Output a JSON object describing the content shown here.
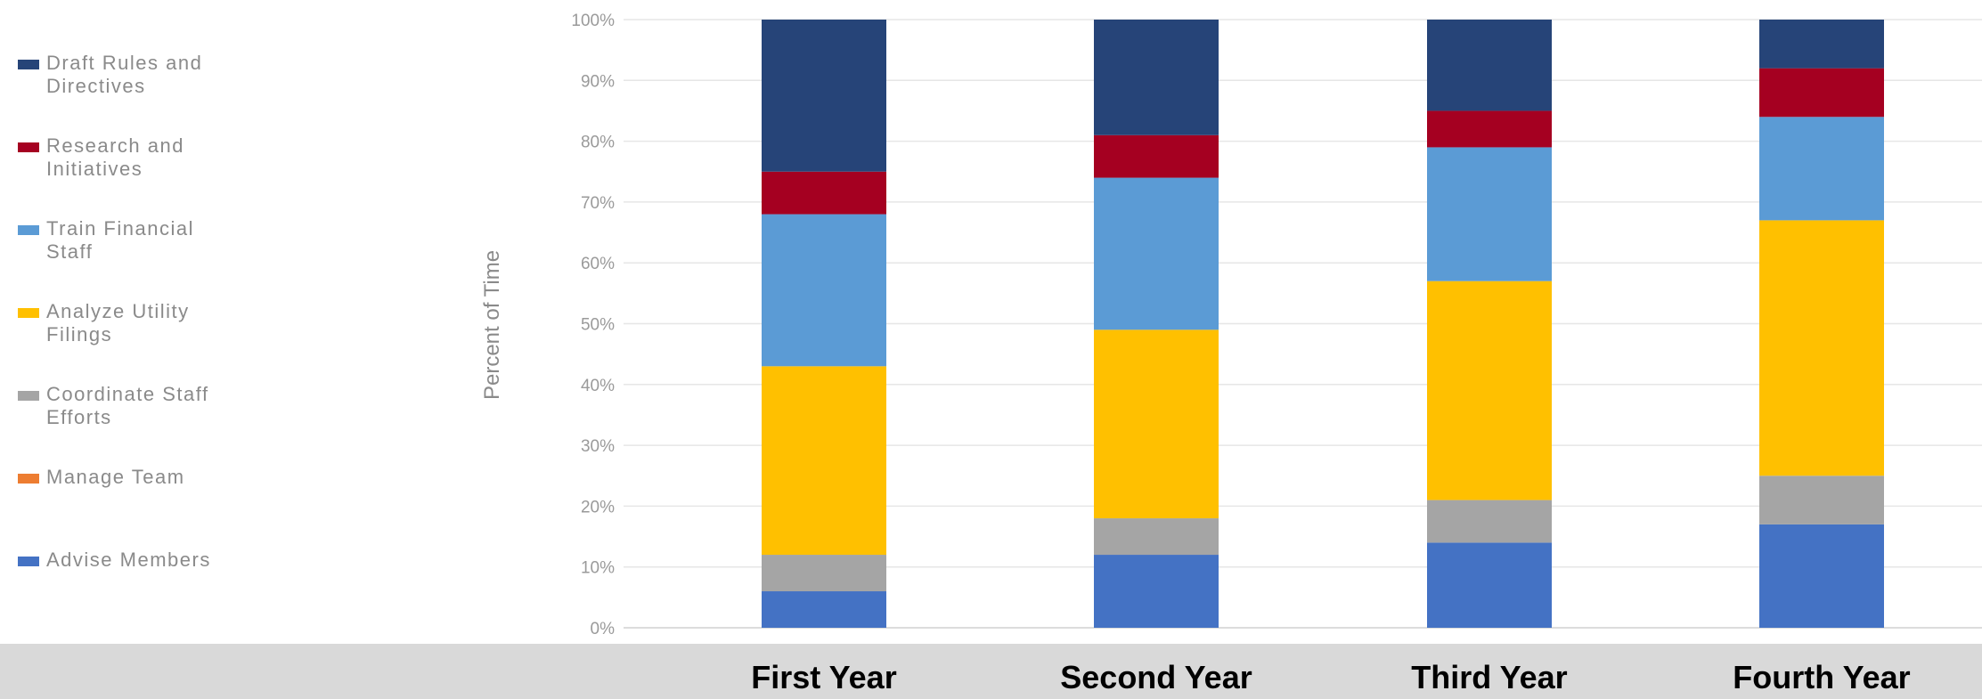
{
  "chart_data": {
    "type": "bar",
    "stacked": true,
    "normalized": true,
    "categories": [
      "First Year",
      "Second Year",
      "Third Year",
      "Fourth Year"
    ],
    "ylabel": "Percent of Time",
    "xlabel": "",
    "ylim": [
      0,
      100
    ],
    "yticks": [
      "0%",
      "10%",
      "20%",
      "30%",
      "40%",
      "50%",
      "60%",
      "70%",
      "80%",
      "90%",
      "100%"
    ],
    "grid": true,
    "legend_position": "left",
    "series": [
      {
        "name": "Advise Members",
        "color": "#4472c4",
        "values": [
          6,
          12,
          14,
          17
        ]
      },
      {
        "name": "Manage Team",
        "color": "#ed7d31",
        "values": [
          0,
          0,
          0,
          0
        ]
      },
      {
        "name": "Coordinate Staff Efforts",
        "color": "#a5a5a5",
        "values": [
          6,
          6,
          7,
          8
        ]
      },
      {
        "name": "Analyze Utility Filings",
        "color": "#ffc000",
        "values": [
          31,
          31,
          36,
          42
        ]
      },
      {
        "name": "Train Financial Staff",
        "color": "#5b9bd5",
        "values": [
          25,
          25,
          22,
          17
        ]
      },
      {
        "name": "Research and Initiatives",
        "color": "#a50021",
        "values": [
          7,
          7,
          6,
          8
        ]
      },
      {
        "name": "Draft Rules and Directives",
        "color": "#264478",
        "values": [
          25,
          19,
          15,
          8
        ]
      }
    ],
    "legend": [
      {
        "label": "Draft Rules and\nDirectives",
        "color": "#264478"
      },
      {
        "label": "Research and\nInitiatives",
        "color": "#a50021"
      },
      {
        "label": "Train Financial\nStaff",
        "color": "#5b9bd5"
      },
      {
        "label": "Analyze Utility\nFilings",
        "color": "#ffc000"
      },
      {
        "label": "Coordinate Staff\nEfforts",
        "color": "#a5a5a5"
      },
      {
        "label": "Manage Team",
        "color": "#ed7d31"
      },
      {
        "label": "Advise Members",
        "color": "#4472c4"
      }
    ]
  }
}
